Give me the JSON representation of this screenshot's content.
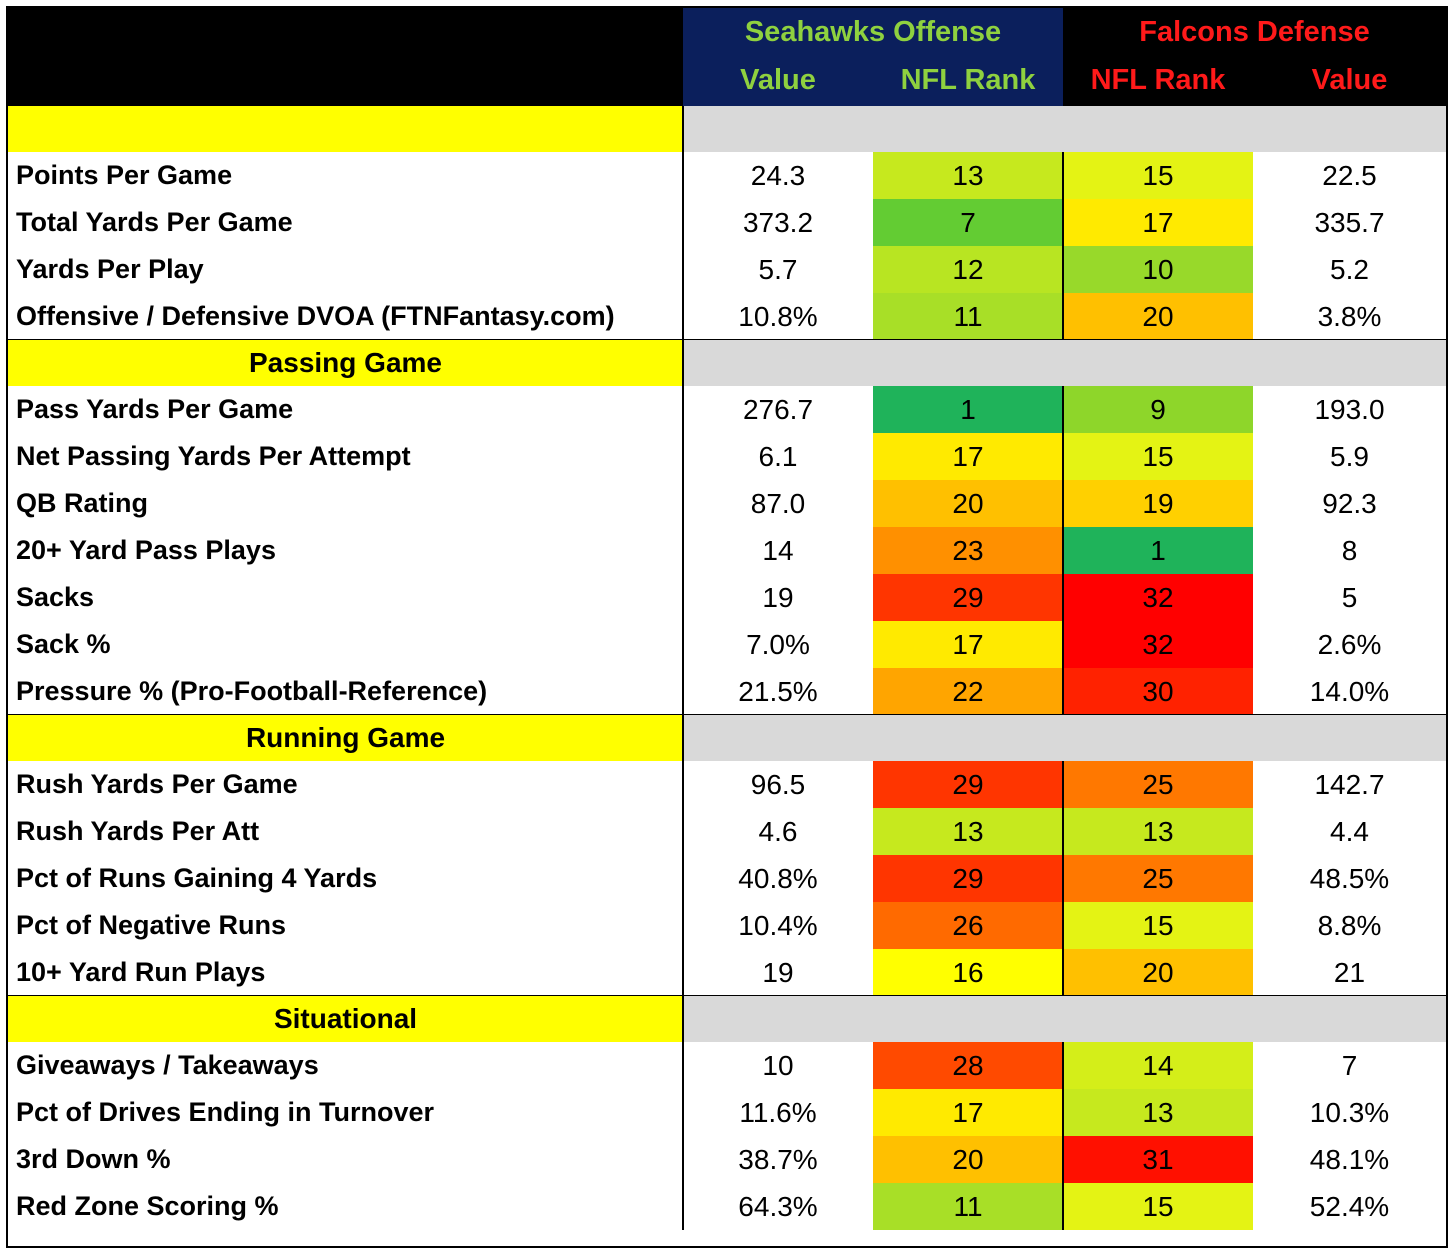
{
  "header": {
    "seahawks_title": "Seahawks Offense",
    "falcons_title": "Falcons Defense",
    "col_value_off": "Value",
    "col_rank_off": "NFL Rank",
    "col_rank_def": "NFL Rank",
    "col_value_def": "Value"
  },
  "sections": [
    {
      "title": "",
      "rows": [
        {
          "label": "Points Per Game",
          "off_value": "24.3",
          "off_rank": "13",
          "def_rank": "15",
          "def_value": "22.5"
        },
        {
          "label": "Total Yards Per Game",
          "off_value": "373.2",
          "off_rank": "7",
          "def_rank": "17",
          "def_value": "335.7"
        },
        {
          "label": "Yards Per Play",
          "off_value": "5.7",
          "off_rank": "12",
          "def_rank": "10",
          "def_value": "5.2"
        },
        {
          "label": "Offensive / Defensive DVOA (FTNFantasy.com)",
          "off_value": "10.8%",
          "off_rank": "11",
          "def_rank": "20",
          "def_value": "3.8%"
        }
      ]
    },
    {
      "title": "Passing Game",
      "rows": [
        {
          "label": "Pass Yards Per Game",
          "off_value": "276.7",
          "off_rank": "1",
          "def_rank": "9",
          "def_value": "193.0"
        },
        {
          "label": "Net Passing Yards Per Attempt",
          "off_value": "6.1",
          "off_rank": "17",
          "def_rank": "15",
          "def_value": "5.9"
        },
        {
          "label": "QB Rating",
          "off_value": "87.0",
          "off_rank": "20",
          "def_rank": "19",
          "def_value": "92.3"
        },
        {
          "label": "20+ Yard Pass Plays",
          "off_value": "14",
          "off_rank": "23",
          "def_rank": "1",
          "def_value": "8"
        },
        {
          "label": "Sacks",
          "off_value": "19",
          "off_rank": "29",
          "def_rank": "32",
          "def_value": "5"
        },
        {
          "label": "Sack %",
          "off_value": "7.0%",
          "off_rank": "17",
          "def_rank": "32",
          "def_value": "2.6%"
        },
        {
          "label": "Pressure % (Pro-Football-Reference)",
          "off_value": "21.5%",
          "off_rank": "22",
          "def_rank": "30",
          "def_value": "14.0%"
        }
      ]
    },
    {
      "title": "Running Game",
      "rows": [
        {
          "label": "Rush Yards Per Game",
          "off_value": "96.5",
          "off_rank": "29",
          "def_rank": "25",
          "def_value": "142.7"
        },
        {
          "label": "Rush Yards Per Att",
          "off_value": "4.6",
          "off_rank": "13",
          "def_rank": "13",
          "def_value": "4.4"
        },
        {
          "label": "Pct of Runs Gaining 4 Yards",
          "off_value": "40.8%",
          "off_rank": "29",
          "def_rank": "25",
          "def_value": "48.5%"
        },
        {
          "label": "Pct of Negative Runs",
          "off_value": "10.4%",
          "off_rank": "26",
          "def_rank": "15",
          "def_value": "8.8%"
        },
        {
          "label": "10+ Yard Run Plays",
          "off_value": "19",
          "off_rank": "16",
          "def_rank": "20",
          "def_value": "21"
        }
      ]
    },
    {
      "title": "Situational",
      "rows": [
        {
          "label": "Giveaways / Takeaways",
          "off_value": "10",
          "off_rank": "28",
          "def_rank": "14",
          "def_value": "7"
        },
        {
          "label": "Pct of Drives Ending in Turnover",
          "off_value": "11.6%",
          "off_rank": "17",
          "def_rank": "13",
          "def_value": "10.3%"
        },
        {
          "label": "3rd Down %",
          "off_value": "38.7%",
          "off_rank": "20",
          "def_rank": "31",
          "def_value": "48.1%"
        },
        {
          "label": "Red Zone Scoring %",
          "off_value": "64.3%",
          "off_rank": "11",
          "def_rank": "15",
          "def_value": "52.4%"
        }
      ]
    }
  ],
  "rank_colors": {
    "1": "#1fb35a",
    "7": "#63cc33",
    "9": "#8ed62a",
    "10": "#98d92a",
    "11": "#a8df27",
    "12": "#b8e522",
    "13": "#c6e91e",
    "14": "#d4ee19",
    "15": "#e4f314",
    "16": "#ffff00",
    "17": "#ffea00",
    "19": "#ffd000",
    "20": "#ffc000",
    "22": "#ffa500",
    "23": "#ff9000",
    "25": "#ff7800",
    "26": "#ff6a00",
    "28": "#ff4a00",
    "29": "#ff3500",
    "30": "#ff2200",
    "31": "#ff1000",
    "32": "#ff0000"
  }
}
